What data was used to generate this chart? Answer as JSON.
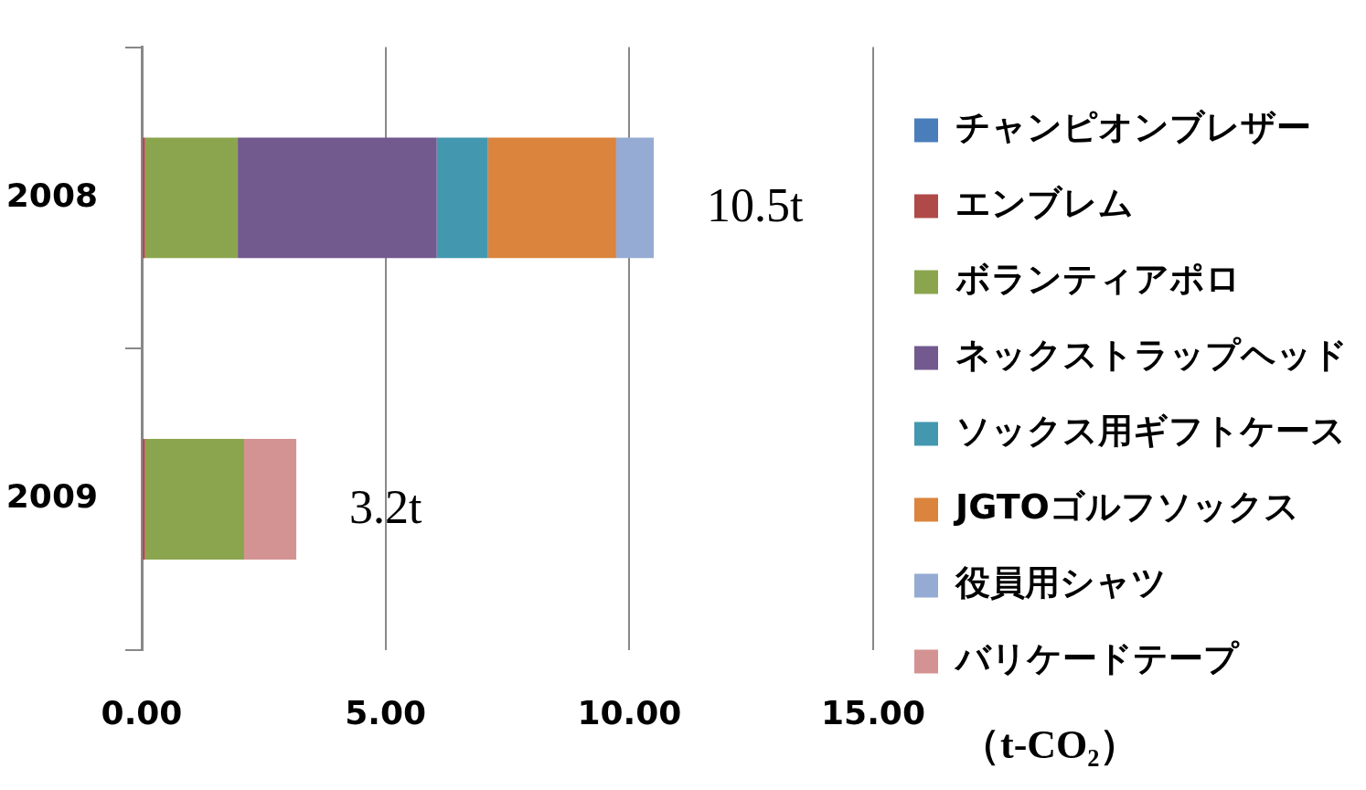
{
  "chart_data": {
    "type": "bar",
    "orientation": "horizontal",
    "stacked": true,
    "xlabel": "（t-CO₂）",
    "categories": [
      "2008",
      "2009"
    ],
    "series": [
      {
        "name": "チャンピオンブレザー",
        "color": "#4a7ebb",
        "values": [
          0,
          0
        ]
      },
      {
        "name": "エンブレム",
        "color": "#b04a48",
        "values": [
          0.07,
          0.07
        ]
      },
      {
        "name": "ボランティアポロ",
        "color": "#8ba54e",
        "values": [
          1.9,
          2.03
        ]
      },
      {
        "name": "ネックストラップヘッド",
        "color": "#72598e",
        "values": [
          4.08,
          0
        ]
      },
      {
        "name": "ソックス用ギフトケース",
        "color": "#4398b0",
        "values": [
          1.05,
          0
        ]
      },
      {
        "name": "JGTOゴルフソックス",
        "color": "#db843d",
        "values": [
          2.63,
          0
        ]
      },
      {
        "name": "役員用シャツ",
        "color": "#95abd3",
        "values": [
          0.77,
          0
        ]
      },
      {
        "name": "バリケードテープ",
        "color": "#d49393",
        "values": [
          0,
          1.07
        ]
      }
    ],
    "xlim": [
      0,
      15
    ],
    "xticks": [
      {
        "value": 0,
        "label": "0.00"
      },
      {
        "value": 5,
        "label": "5.00"
      },
      {
        "value": 10,
        "label": "10.00"
      },
      {
        "value": 15,
        "label": "15.00"
      }
    ],
    "grid": "x",
    "legend": "right",
    "annotations": [
      {
        "text": "10.5t",
        "x": 10.5,
        "y": "2008"
      },
      {
        "text": "3.2t",
        "x": 3.17,
        "y": "2009"
      }
    ]
  }
}
